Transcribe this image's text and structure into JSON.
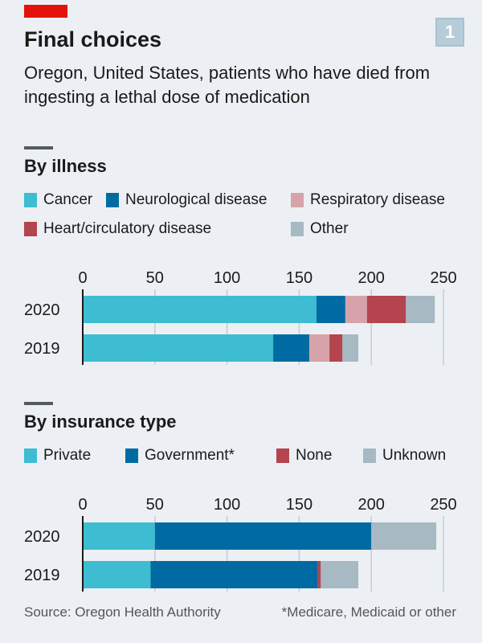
{
  "header": {
    "title": "Final choices",
    "badge": "1",
    "subtitle": "Oregon, United States, patients who have died from ingesting a lethal dose of medication"
  },
  "colors": {
    "brand_red": "#e3120b",
    "light_blue": "#3ebcd2",
    "dark_blue": "#006ba2",
    "light_red": "#d6a3aa",
    "dark_red": "#b4444e",
    "grey": "#a7b9c3"
  },
  "chart_data": [
    {
      "type": "bar",
      "orientation": "horizontal",
      "stacked": true,
      "title": "By illness",
      "categories": [
        "2020",
        "2019"
      ],
      "xlim": [
        0,
        250
      ],
      "xticks": [
        "0",
        "50",
        "100",
        "150",
        "200",
        "250"
      ],
      "grid": true,
      "legend_position": "top",
      "series": [
        {
          "name": "Cancer",
          "color": "#3ebcd2",
          "values": [
            162,
            132
          ]
        },
        {
          "name": "Neurological disease",
          "color": "#006ba2",
          "values": [
            20,
            25
          ]
        },
        {
          "name": "Respiratory disease",
          "color": "#d6a3aa",
          "values": [
            15,
            14
          ]
        },
        {
          "name": "Heart/circulatory disease",
          "color": "#b4444e",
          "values": [
            27,
            9
          ]
        },
        {
          "name": "Other",
          "color": "#a7b9c3",
          "values": [
            20,
            11
          ]
        }
      ]
    },
    {
      "type": "bar",
      "orientation": "horizontal",
      "stacked": true,
      "title": "By insurance type",
      "categories": [
        "2020",
        "2019"
      ],
      "xlim": [
        0,
        250
      ],
      "xticks": [
        "0",
        "50",
        "100",
        "150",
        "200",
        "250"
      ],
      "grid": true,
      "legend_position": "top",
      "series": [
        {
          "name": "Private",
          "color": "#3ebcd2",
          "values": [
            50,
            47
          ]
        },
        {
          "name": "Government*",
          "color": "#006ba2",
          "values": [
            150,
            116
          ]
        },
        {
          "name": "None",
          "color": "#b4444e",
          "values": [
            0,
            2
          ]
        },
        {
          "name": "Unknown",
          "color": "#a7b9c3",
          "values": [
            45,
            26
          ]
        }
      ]
    }
  ],
  "footer": {
    "source": "Source: Oregon Health Authority",
    "note": "*Medicare, Medicaid or other"
  }
}
